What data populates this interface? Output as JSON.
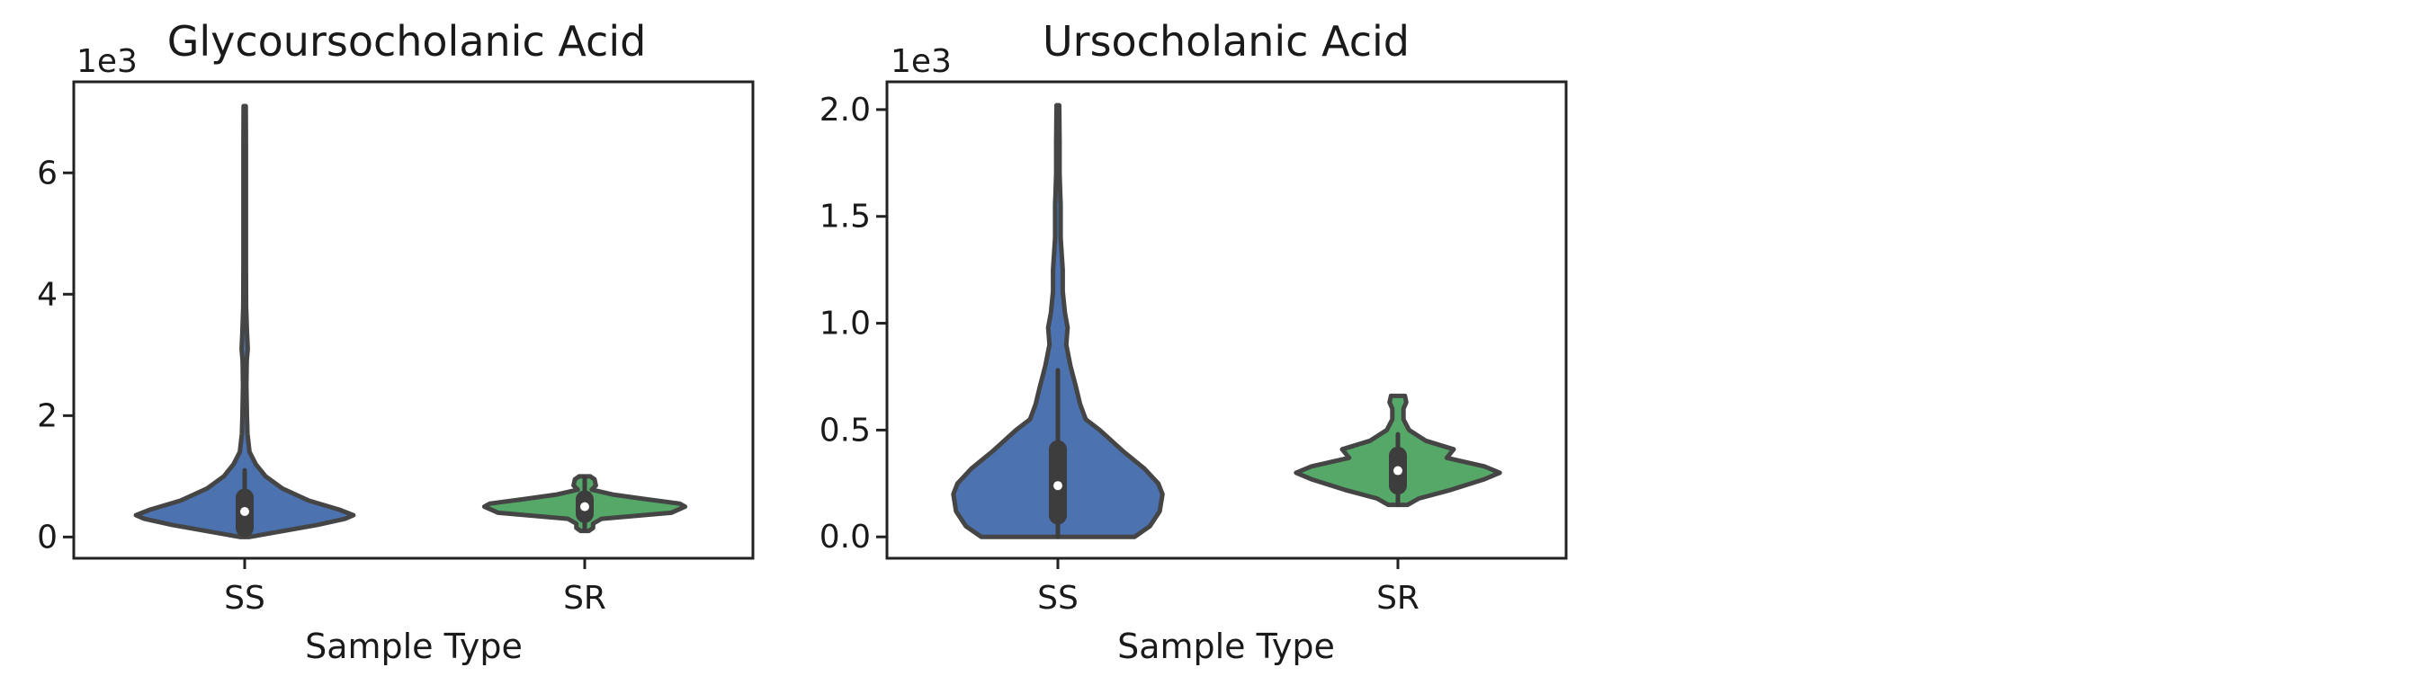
{
  "chart_data": [
    {
      "type": "violin",
      "title": "Glycoursocholanic Acid",
      "xlabel": "Sample Type",
      "ylabel": "",
      "y_offset_label": "1e3",
      "ylim": [
        -0.35,
        7.5
      ],
      "yticks": [
        0,
        2,
        4,
        6
      ],
      "ytick_labels": [
        "0",
        "2",
        "4",
        "6"
      ],
      "categories": [
        "SS",
        "SR"
      ],
      "colors": [
        "#4c72b0",
        "#55a868"
      ],
      "violins": [
        {
          "category": "SS",
          "min": 0.0,
          "q1": 0.15,
          "median": 0.42,
          "q3": 0.65,
          "whisker_low": 0.05,
          "whisker_high": 1.1,
          "max": 7.1,
          "profile": [
            [
              0.0,
              0.03
            ],
            [
              0.1,
              0.28
            ],
            [
              0.2,
              0.52
            ],
            [
              0.3,
              0.72
            ],
            [
              0.36,
              0.78
            ],
            [
              0.45,
              0.68
            ],
            [
              0.6,
              0.46
            ],
            [
              0.8,
              0.27
            ],
            [
              1.0,
              0.15
            ],
            [
              1.2,
              0.08
            ],
            [
              1.4,
              0.035
            ],
            [
              1.7,
              0.02
            ],
            [
              2.0,
              0.016
            ],
            [
              2.5,
              0.012
            ],
            [
              2.9,
              0.015
            ],
            [
              3.1,
              0.022
            ],
            [
              3.4,
              0.016
            ],
            [
              3.8,
              0.01
            ],
            [
              4.5,
              0.009
            ],
            [
              5.5,
              0.009
            ],
            [
              6.5,
              0.009
            ],
            [
              7.1,
              0.008
            ]
          ]
        },
        {
          "category": "SR",
          "min": 0.1,
          "q1": 0.38,
          "median": 0.5,
          "q3": 0.62,
          "whisker_low": 0.12,
          "whisker_high": 0.98,
          "max": 1.0,
          "profile": [
            [
              0.1,
              0.03
            ],
            [
              0.15,
              0.06
            ],
            [
              0.22,
              0.06
            ],
            [
              0.3,
              0.12
            ],
            [
              0.4,
              0.62
            ],
            [
              0.5,
              0.72
            ],
            [
              0.55,
              0.68
            ],
            [
              0.62,
              0.45
            ],
            [
              0.7,
              0.2
            ],
            [
              0.78,
              0.05
            ],
            [
              0.85,
              0.08
            ],
            [
              0.95,
              0.07
            ],
            [
              1.0,
              0.04
            ]
          ]
        }
      ]
    },
    {
      "type": "violin",
      "title": "Ursocholanic Acid",
      "xlabel": "Sample Type",
      "ylabel": "",
      "y_offset_label": "1e3",
      "ylim": [
        -0.1,
        2.13
      ],
      "yticks": [
        0.0,
        0.5,
        1.0,
        1.5,
        2.0
      ],
      "ytick_labels": [
        "0.0",
        "0.5",
        "1.0",
        "1.5",
        "2.0"
      ],
      "categories": [
        "SS",
        "SR"
      ],
      "colors": [
        "#4c72b0",
        "#55a868"
      ],
      "violins": [
        {
          "category": "SS",
          "min": 0.0,
          "q1": 0.1,
          "median": 0.24,
          "q3": 0.41,
          "whisker_low": 0.0,
          "whisker_high": 0.78,
          "max": 2.02,
          "profile": [
            [
              0.0,
              0.55
            ],
            [
              0.05,
              0.66
            ],
            [
              0.12,
              0.73
            ],
            [
              0.2,
              0.75
            ],
            [
              0.25,
              0.72
            ],
            [
              0.32,
              0.62
            ],
            [
              0.4,
              0.47
            ],
            [
              0.5,
              0.3
            ],
            [
              0.55,
              0.2
            ],
            [
              0.62,
              0.16
            ],
            [
              0.7,
              0.13
            ],
            [
              0.8,
              0.09
            ],
            [
              0.9,
              0.06
            ],
            [
              0.98,
              0.07
            ],
            [
              1.05,
              0.05
            ],
            [
              1.15,
              0.035
            ],
            [
              1.25,
              0.035
            ],
            [
              1.4,
              0.02
            ],
            [
              1.55,
              0.02
            ],
            [
              1.7,
              0.012
            ],
            [
              1.85,
              0.012
            ],
            [
              2.02,
              0.01
            ]
          ]
        },
        {
          "category": "SR",
          "min": 0.15,
          "q1": 0.24,
          "median": 0.31,
          "q3": 0.38,
          "whisker_low": 0.15,
          "whisker_high": 0.48,
          "max": 0.66,
          "profile": [
            [
              0.15,
              0.07
            ],
            [
              0.18,
              0.15
            ],
            [
              0.22,
              0.38
            ],
            [
              0.27,
              0.62
            ],
            [
              0.3,
              0.73
            ],
            [
              0.33,
              0.62
            ],
            [
              0.37,
              0.35
            ],
            [
              0.41,
              0.4
            ],
            [
              0.45,
              0.2
            ],
            [
              0.5,
              0.08
            ],
            [
              0.55,
              0.04
            ],
            [
              0.6,
              0.04
            ],
            [
              0.63,
              0.06
            ],
            [
              0.66,
              0.05
            ]
          ]
        }
      ]
    }
  ]
}
